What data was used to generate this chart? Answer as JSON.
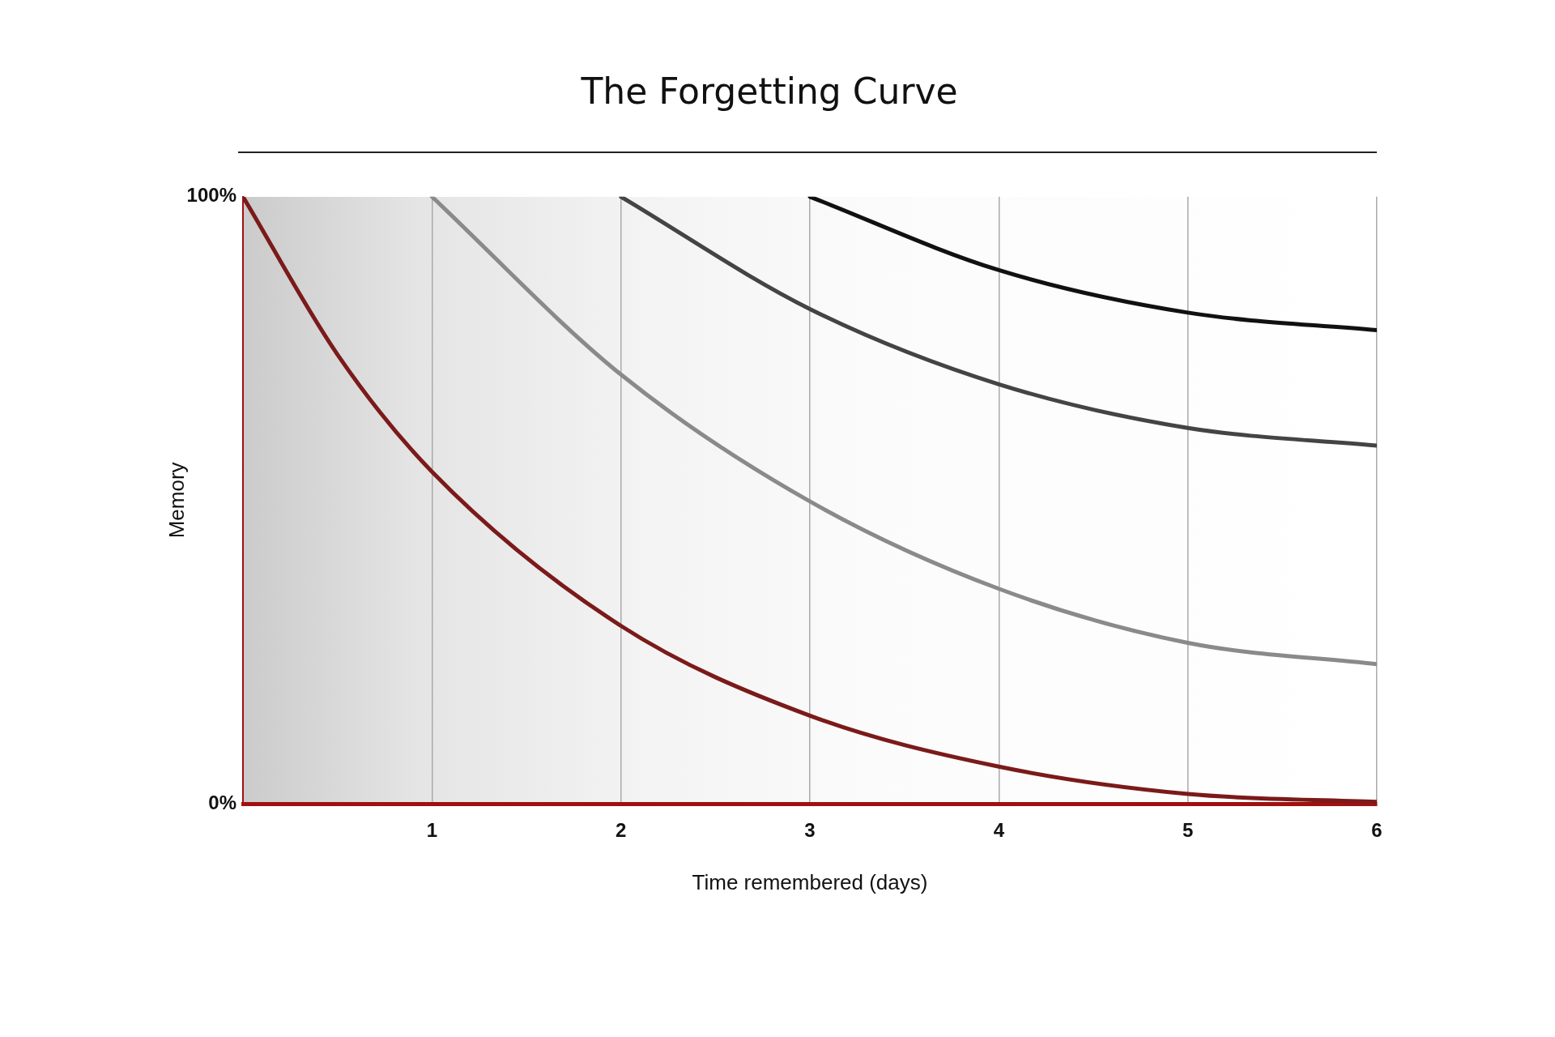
{
  "chart_data": {
    "type": "line",
    "title": "The Forgetting Curve",
    "xlabel": "Time remembered (days)",
    "ylabel": "Memory",
    "xlim": [
      0,
      6
    ],
    "xticks": [
      1,
      2,
      3,
      4,
      5,
      6
    ],
    "ylim": [
      0,
      100
    ],
    "yticks": [
      {
        "value": 0,
        "label": "0%"
      },
      {
        "value": 100,
        "label": "100%"
      }
    ],
    "grid": "x",
    "legend": false,
    "marker": "none",
    "line_style": "solid",
    "series": [
      {
        "color": "#7b1a1a",
        "x": [
          0,
          0.5,
          1,
          2,
          3,
          4,
          5,
          6
        ],
        "values": [
          100,
          74,
          54.7,
          29.3,
          14.5,
          6.1,
          1.6,
          0.3
        ]
      },
      {
        "color": "#8a8a8a",
        "x": [
          1,
          2,
          3,
          4,
          5,
          6
        ],
        "values": [
          100,
          70.7,
          49.8,
          35.4,
          26.5,
          23
        ]
      },
      {
        "color": "#444444",
        "x": [
          2,
          3,
          4,
          5,
          6
        ],
        "values": [
          100,
          81.5,
          69.1,
          61.9,
          59
        ]
      },
      {
        "color": "#111111",
        "x": [
          3,
          4,
          5,
          6
        ],
        "values": [
          100,
          87.9,
          80.9,
          78
        ]
      }
    ]
  }
}
